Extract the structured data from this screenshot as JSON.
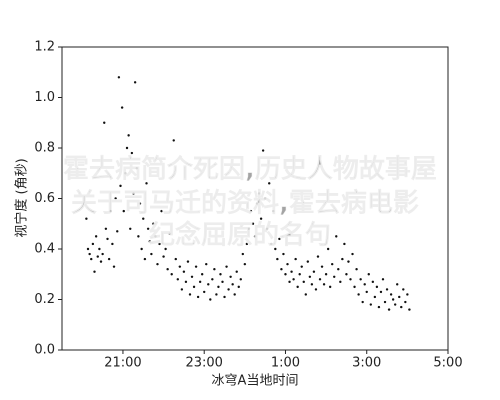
{
  "chart_data": {
    "type": "scatter",
    "xlabel": "冰穹A当地时间",
    "ylabel": "视宁度 (角秒)",
    "color": "#111111",
    "xlim": [
      19.5,
      29
    ],
    "ylim": [
      0,
      1.2
    ],
    "xticks": [
      {
        "value": 21,
        "label": "21:00"
      },
      {
        "value": 23,
        "label": "23:00"
      },
      {
        "value": 25,
        "label": "1:00"
      },
      {
        "value": 27,
        "label": "3:00"
      },
      {
        "value": 29,
        "label": "5:00"
      }
    ],
    "yticks": [
      {
        "value": 0,
        "label": "0.0"
      },
      0.2,
      0.4,
      0.6,
      0.8,
      {
        "value": 1,
        "label": "1.0"
      },
      1.2
    ],
    "x": [
      20.1,
      20.14,
      20.18,
      20.22,
      20.26,
      20.3,
      20.34,
      20.38,
      20.42,
      20.46,
      20.5,
      20.54,
      20.58,
      20.62,
      20.66,
      20.7,
      20.74,
      20.78,
      20.82,
      20.86,
      20.9,
      20.94,
      20.98,
      21.02,
      21.06,
      21.1,
      21.14,
      21.18,
      21.22,
      21.26,
      21.3,
      21.34,
      21.38,
      21.42,
      21.46,
      21.5,
      21.54,
      21.58,
      21.62,
      21.66,
      21.7,
      21.75,
      21.8,
      21.85,
      21.9,
      21.95,
      22.0,
      22.05,
      22.1,
      22.15,
      22.2,
      22.25,
      22.3,
      22.35,
      22.4,
      22.45,
      22.5,
      22.55,
      22.6,
      22.65,
      22.7,
      22.75,
      22.8,
      22.85,
      22.9,
      22.95,
      23.0,
      23.05,
      23.1,
      23.15,
      23.2,
      23.25,
      23.3,
      23.35,
      23.4,
      23.45,
      23.5,
      23.55,
      23.6,
      23.65,
      23.7,
      23.75,
      23.8,
      23.85,
      23.9,
      23.95,
      24.0,
      24.05,
      24.1,
      24.15,
      24.2,
      24.25,
      24.3,
      24.35,
      24.4,
      24.45,
      24.5,
      24.55,
      24.6,
      24.65,
      24.7,
      24.75,
      24.8,
      24.85,
      24.9,
      24.95,
      25.0,
      25.05,
      25.1,
      25.15,
      25.2,
      25.25,
      25.3,
      25.35,
      25.4,
      25.45,
      25.5,
      25.55,
      25.6,
      25.65,
      25.7,
      25.75,
      25.8,
      25.85,
      25.9,
      25.95,
      26.0,
      26.05,
      26.1,
      26.15,
      26.2,
      26.25,
      26.3,
      26.35,
      26.4,
      26.45,
      26.5,
      26.55,
      26.6,
      26.65,
      26.7,
      26.75,
      26.8,
      26.85,
      26.9,
      26.95,
      27.0,
      27.05,
      27.1,
      27.15,
      27.2,
      27.25,
      27.3,
      27.35,
      27.4,
      27.45,
      27.5,
      27.55,
      27.6,
      27.65,
      27.7,
      27.75,
      27.8,
      27.85,
      27.9,
      27.95,
      28.0,
      28.05
    ],
    "values": [
      0.52,
      0.4,
      0.38,
      0.36,
      0.42,
      0.31,
      0.45,
      0.37,
      0.4,
      0.35,
      0.38,
      0.9,
      0.48,
      0.44,
      0.36,
      0.55,
      0.42,
      0.33,
      0.6,
      0.47,
      1.08,
      0.65,
      0.96,
      0.55,
      0.7,
      0.8,
      0.85,
      0.48,
      0.78,
      0.62,
      1.06,
      0.72,
      0.45,
      0.58,
      0.4,
      0.52,
      0.36,
      0.66,
      0.48,
      0.43,
      0.38,
      0.5,
      0.45,
      0.34,
      0.42,
      0.55,
      0.37,
      0.4,
      0.32,
      0.46,
      0.3,
      0.83,
      0.36,
      0.28,
      0.33,
      0.24,
      0.31,
      0.27,
      0.35,
      0.22,
      0.29,
      0.25,
      0.33,
      0.21,
      0.27,
      0.3,
      0.23,
      0.34,
      0.26,
      0.2,
      0.28,
      0.32,
      0.22,
      0.25,
      0.3,
      0.27,
      0.21,
      0.33,
      0.24,
      0.29,
      0.26,
      0.22,
      0.31,
      0.25,
      0.28,
      0.38,
      0.34,
      0.42,
      0.48,
      0.55,
      0.5,
      0.45,
      0.58,
      0.62,
      0.52,
      0.79,
      0.6,
      0.48,
      0.66,
      0.42,
      0.55,
      0.4,
      0.36,
      0.44,
      0.32,
      0.38,
      0.3,
      0.34,
      0.27,
      0.31,
      0.28,
      0.36,
      0.25,
      0.3,
      0.33,
      0.27,
      0.22,
      0.35,
      0.29,
      0.26,
      0.31,
      0.24,
      0.37,
      0.28,
      0.33,
      0.26,
      0.3,
      0.4,
      0.25,
      0.34,
      0.29,
      0.45,
      0.32,
      0.27,
      0.36,
      0.42,
      0.3,
      0.35,
      0.28,
      0.38,
      0.25,
      0.32,
      0.22,
      0.28,
      0.19,
      0.26,
      0.23,
      0.3,
      0.18,
      0.27,
      0.21,
      0.25,
      0.17,
      0.23,
      0.28,
      0.19,
      0.24,
      0.16,
      0.22,
      0.2,
      0.18,
      0.26,
      0.21,
      0.17,
      0.24,
      0.19,
      0.22,
      0.16
    ],
    "watermark": [
      "霍去病简介死因,历史人物故事屋",
      "关于司马迁的资料,霍去病电影",
      "纪念屈原的名句"
    ]
  }
}
